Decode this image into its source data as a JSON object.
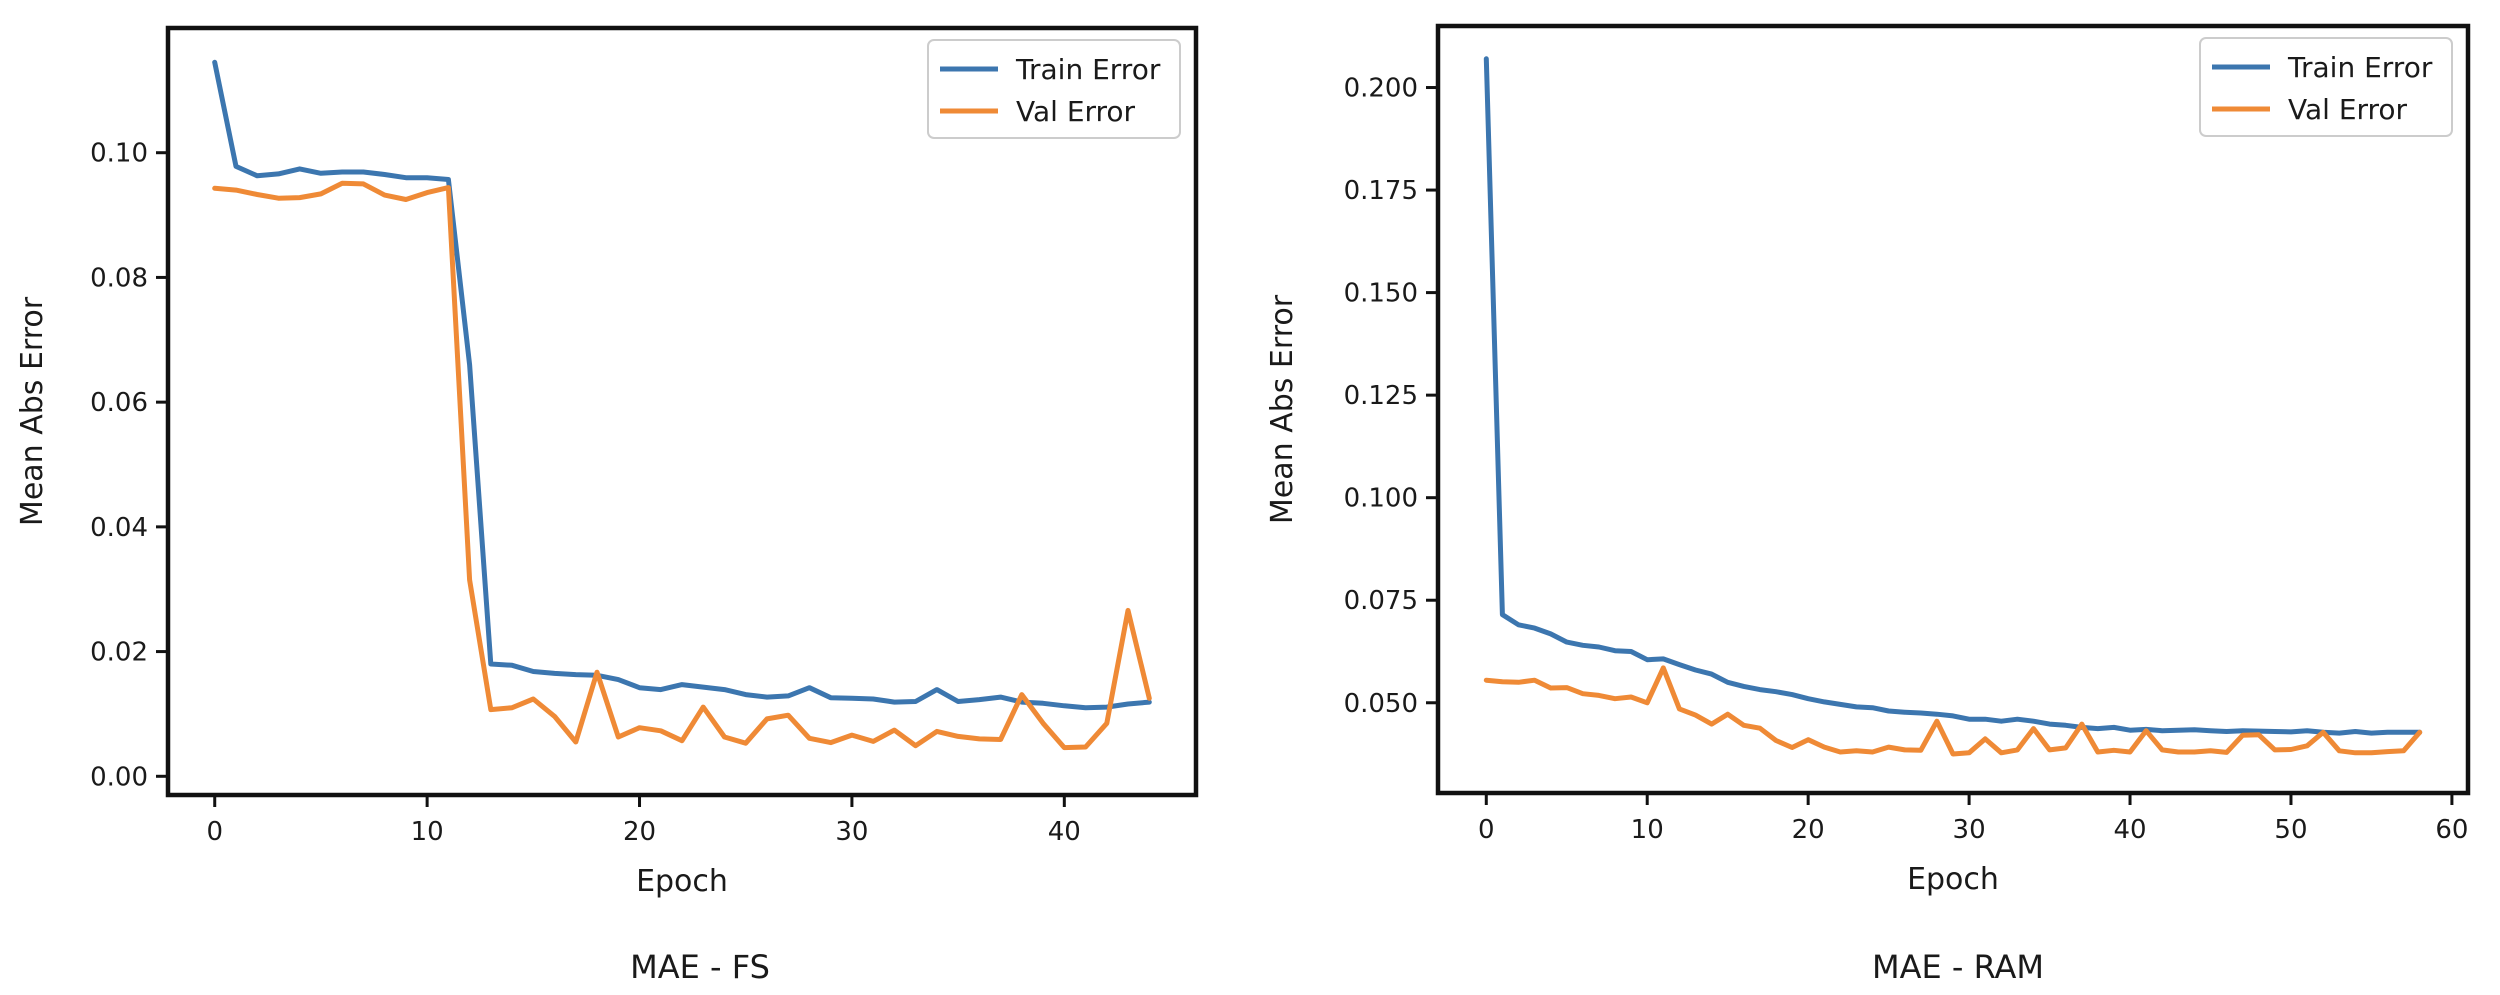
{
  "colors": {
    "train": "#3c76af",
    "val": "#ef8a36",
    "axis": "#111111"
  },
  "chart_data": [
    {
      "type": "line",
      "caption": "MAE - FS",
      "xlabel": "Epoch",
      "ylabel": "Mean Abs Error",
      "xlim": [
        -2.2,
        46.2
      ],
      "ylim": [
        -0.003,
        0.12
      ],
      "xticks": [
        0,
        10,
        20,
        30,
        40
      ],
      "xtick_labels": [
        "0",
        "10",
        "20",
        "30",
        "40"
      ],
      "yticks": [
        0.0,
        0.02,
        0.04,
        0.06,
        0.08,
        0.1
      ],
      "ytick_labels": [
        "0.00",
        "0.02",
        "0.04",
        "0.06",
        "0.08",
        "0.10"
      ],
      "legend_position": "top-right",
      "series": [
        {
          "name": "Train Error",
          "x": [
            0,
            1,
            2,
            3,
            4,
            5,
            6,
            7,
            8,
            9,
            10,
            11,
            12,
            13,
            14,
            15,
            16,
            17,
            18,
            19,
            20,
            21,
            22,
            23,
            24,
            25,
            26,
            27,
            28,
            29,
            30,
            31,
            32,
            33,
            34,
            35,
            36,
            37,
            38,
            39,
            40,
            41,
            42,
            43,
            44
          ],
          "values": [
            0.1145,
            0.0978,
            0.0963,
            0.0966,
            0.0974,
            0.0967,
            0.0969,
            0.0969,
            0.0965,
            0.096,
            0.096,
            0.0957,
            0.066,
            0.018,
            0.0178,
            0.0168,
            0.0165,
            0.0163,
            0.0162,
            0.0155,
            0.0142,
            0.0139,
            0.0147,
            0.0143,
            0.0139,
            0.0131,
            0.0127,
            0.0129,
            0.0142,
            0.0126,
            0.0125,
            0.0124,
            0.0119,
            0.012,
            0.0139,
            0.012,
            0.0123,
            0.0127,
            0.0119,
            0.0117,
            0.0113,
            0.011,
            0.0111,
            0.0116,
            0.0119
          ]
        },
        {
          "name": "Val Error",
          "x": [
            0,
            1,
            2,
            3,
            4,
            5,
            6,
            7,
            8,
            9,
            10,
            11,
            12,
            13,
            14,
            15,
            16,
            17,
            18,
            19,
            20,
            21,
            22,
            23,
            24,
            25,
            26,
            27,
            28,
            29,
            30,
            31,
            32,
            33,
            34,
            35,
            36,
            37,
            38,
            39,
            40,
            41,
            42,
            43,
            44
          ],
          "values": [
            0.0943,
            0.094,
            0.0933,
            0.0927,
            0.0928,
            0.0934,
            0.0951,
            0.095,
            0.0932,
            0.0925,
            0.0936,
            0.0944,
            0.0315,
            0.0107,
            0.011,
            0.0124,
            0.0096,
            0.0055,
            0.0167,
            0.0063,
            0.0078,
            0.0073,
            0.0057,
            0.0111,
            0.0063,
            0.0053,
            0.0092,
            0.0098,
            0.0061,
            0.0054,
            0.0066,
            0.0056,
            0.0074,
            0.0049,
            0.0072,
            0.0064,
            0.006,
            0.0059,
            0.0131,
            0.0085,
            0.0046,
            0.0047,
            0.0085,
            0.0266,
            0.0125
          ]
        }
      ]
    },
    {
      "type": "line",
      "caption": "MAE - RAM",
      "xlabel": "Epoch",
      "ylabel": "Mean Abs Error",
      "xlim": [
        -3,
        61
      ],
      "ylim": [
        0.028,
        0.215
      ],
      "xticks": [
        0,
        10,
        20,
        30,
        40,
        50,
        60
      ],
      "xtick_labels": [
        "0",
        "10",
        "20",
        "30",
        "40",
        "50",
        "60"
      ],
      "yticks": [
        0.05,
        0.075,
        0.1,
        0.125,
        0.15,
        0.175,
        0.2
      ],
      "ytick_labels": [
        "0.050",
        "0.075",
        "0.100",
        "0.125",
        "0.150",
        "0.175",
        "0.200"
      ],
      "legend_position": "top-right",
      "series": [
        {
          "name": "Train Error",
          "x": [
            0,
            1,
            2,
            3,
            4,
            5,
            6,
            7,
            8,
            9,
            10,
            11,
            12,
            13,
            14,
            15,
            16,
            17,
            18,
            19,
            20,
            21,
            22,
            23,
            24,
            25,
            26,
            27,
            28,
            29,
            30,
            31,
            32,
            33,
            34,
            35,
            36,
            37,
            38,
            39,
            40,
            41,
            42,
            43,
            44,
            45,
            46,
            47,
            48,
            49,
            50,
            51,
            52,
            53,
            54,
            55,
            56,
            57,
            58
          ],
          "values": [
            0.207,
            0.0715,
            0.069,
            0.0682,
            0.0668,
            0.0648,
            0.064,
            0.0636,
            0.0627,
            0.0625,
            0.0605,
            0.0607,
            0.0593,
            0.058,
            0.057,
            0.055,
            0.054,
            0.0532,
            0.0527,
            0.052,
            0.051,
            0.0502,
            0.0496,
            0.049,
            0.0488,
            0.048,
            0.0477,
            0.0475,
            0.0472,
            0.0468,
            0.046,
            0.046,
            0.0455,
            0.046,
            0.0455,
            0.0448,
            0.0445,
            0.044,
            0.0437,
            0.044,
            0.0433,
            0.0435,
            0.0432,
            0.0433,
            0.0434,
            0.0432,
            0.043,
            0.0432,
            0.0431,
            0.043,
            0.0429,
            0.0432,
            0.0428,
            0.0426,
            0.043,
            0.0426,
            0.0428,
            0.0428,
            0.0428
          ]
        },
        {
          "name": "Val Error",
          "x": [
            0,
            1,
            2,
            3,
            4,
            5,
            6,
            7,
            8,
            9,
            10,
            11,
            12,
            13,
            14,
            15,
            16,
            17,
            18,
            19,
            20,
            21,
            22,
            23,
            24,
            25,
            26,
            27,
            28,
            29,
            30,
            31,
            32,
            33,
            34,
            35,
            36,
            37,
            38,
            39,
            40,
            41,
            42,
            43,
            44,
            45,
            46,
            47,
            48,
            49,
            50,
            51,
            52,
            53,
            54,
            55,
            56,
            57,
            58
          ],
          "values": [
            0.0555,
            0.0551,
            0.055,
            0.0555,
            0.0536,
            0.0537,
            0.0522,
            0.0518,
            0.051,
            0.0514,
            0.05,
            0.0585,
            0.0485,
            0.047,
            0.0448,
            0.0472,
            0.0445,
            0.0438,
            0.0408,
            0.0391,
            0.041,
            0.0392,
            0.038,
            0.0383,
            0.038,
            0.0392,
            0.0385,
            0.0384,
            0.0455,
            0.0375,
            0.0378,
            0.0412,
            0.0378,
            0.0385,
            0.0437,
            0.0385,
            0.039,
            0.0448,
            0.038,
            0.0384,
            0.038,
            0.0432,
            0.0385,
            0.038,
            0.038,
            0.0383,
            0.0379,
            0.0421,
            0.0422,
            0.0385,
            0.0386,
            0.0395,
            0.0428,
            0.0383,
            0.0378,
            0.0378,
            0.0381,
            0.0383,
            0.0428
          ]
        }
      ]
    }
  ]
}
